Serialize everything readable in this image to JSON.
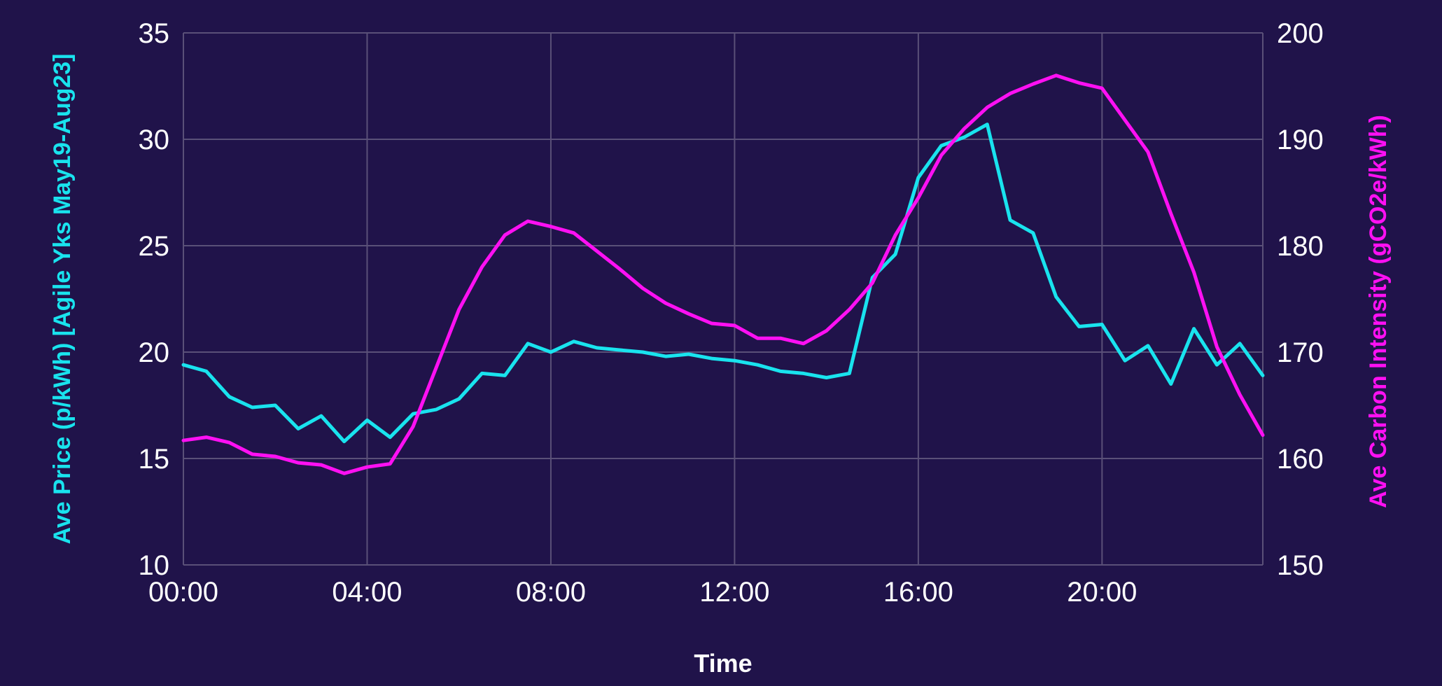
{
  "chart_data": {
    "type": "line",
    "title": "",
    "xlabel": "Time",
    "ylabel": "Ave Price (p/kWh) [Agile Yks May19-Aug23]",
    "y2label": "Ave Carbon Intensity (gCO2e/kWh)",
    "xlim": [
      0,
      23.5
    ],
    "ylim": [
      10,
      35
    ],
    "y2lim": [
      150,
      200
    ],
    "x_ticks": [
      0,
      4,
      8,
      12,
      16,
      20
    ],
    "x_tick_labels": [
      "00:00",
      "04:00",
      "08:00",
      "12:00",
      "16:00",
      "20:00"
    ],
    "y_ticks": [
      10,
      15,
      20,
      25,
      30,
      35
    ],
    "y2_ticks": [
      150,
      160,
      170,
      180,
      190,
      200
    ],
    "grid": true,
    "legend": "none",
    "x": [
      0,
      0.5,
      1,
      1.5,
      2,
      2.5,
      3,
      3.5,
      4,
      4.5,
      5,
      5.5,
      6,
      6.5,
      7,
      7.5,
      8,
      8.5,
      9,
      9.5,
      10,
      10.5,
      11,
      11.5,
      12,
      12.5,
      13,
      13.5,
      14,
      14.5,
      15,
      15.5,
      16,
      16.5,
      17,
      17.5,
      18,
      18.5,
      19,
      19.5,
      20,
      20.5,
      21,
      21.5,
      22,
      22.5,
      23,
      23.5
    ],
    "series": [
      {
        "axis": "left",
        "color": "#19e3ee",
        "values": [
          19.4,
          19.1,
          17.9,
          17.4,
          17.5,
          16.4,
          17.0,
          15.8,
          16.8,
          16.0,
          17.1,
          17.3,
          17.8,
          19.0,
          18.9,
          20.4,
          20.0,
          20.5,
          20.2,
          20.1,
          20.0,
          19.8,
          19.9,
          19.7,
          19.6,
          19.4,
          19.1,
          19.0,
          18.8,
          19.0,
          23.5,
          24.6,
          28.2,
          29.7,
          30.1,
          30.7,
          26.2,
          25.6,
          22.6,
          21.2,
          21.3,
          19.6,
          20.3,
          18.5,
          21.1,
          19.4,
          20.4,
          18.9
        ]
      },
      {
        "axis": "right",
        "color": "#ff10f3",
        "values": [
          161.7,
          162.0,
          161.5,
          160.4,
          160.2,
          159.6,
          159.4,
          158.6,
          159.2,
          159.5,
          163.0,
          168.5,
          174.0,
          178.0,
          181.0,
          182.3,
          181.8,
          181.2,
          179.5,
          177.8,
          176.0,
          174.6,
          173.6,
          172.7,
          172.5,
          171.3,
          171.3,
          170.8,
          172.0,
          174.0,
          176.5,
          181.0,
          184.5,
          188.5,
          191.0,
          193.0,
          194.3,
          195.2,
          196.0,
          195.3,
          194.8,
          191.8,
          188.8,
          183.0,
          177.5,
          170.5,
          166.0,
          162.2
        ]
      }
    ]
  }
}
